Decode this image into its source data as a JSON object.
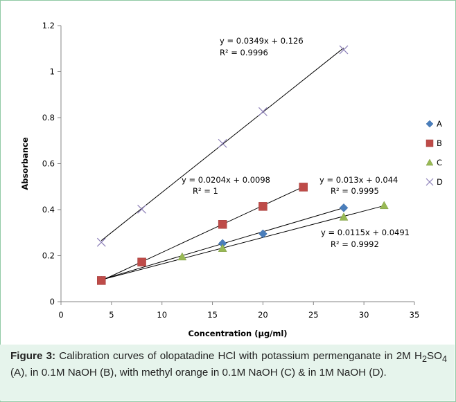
{
  "chart_data": {
    "type": "scatter",
    "xlabel": "Concentration (µg/ml)",
    "ylabel": "Absorbance",
    "xlim": [
      0,
      35
    ],
    "ylim": [
      0,
      1.2
    ],
    "x_ticks": [
      "0",
      "5",
      "10",
      "15",
      "20",
      "25",
      "30",
      "35"
    ],
    "y_ticks": [
      "0",
      "0.2",
      "0.4",
      "0.6",
      "0.8",
      "1",
      "1.2"
    ],
    "grid": false,
    "legend_position": "right",
    "series": [
      {
        "name": "A",
        "marker": "diamond",
        "color": "#4a7ebb",
        "x": [
          4,
          16,
          20,
          28
        ],
        "y": [
          0.093,
          0.253,
          0.295,
          0.408
        ],
        "trendline": {
          "slope": 0.013,
          "intercept": 0.044,
          "x_range": [
            4,
            28
          ]
        },
        "equation": "y = 0.013x + 0.044",
        "r2": "R² = 0.9995"
      },
      {
        "name": "B",
        "marker": "square",
        "color": "#be4b48",
        "x": [
          4,
          8,
          16,
          20,
          24
        ],
        "y": [
          0.092,
          0.172,
          0.336,
          0.414,
          0.498
        ],
        "trendline": {
          "slope": 0.0204,
          "intercept": 0.0098,
          "x_range": [
            4,
            24
          ]
        },
        "equation": "y = 0.0204x + 0.0098",
        "r2": "R² = 1"
      },
      {
        "name": "C",
        "marker": "triangle",
        "color": "#98b954",
        "x": [
          4,
          12,
          16,
          28,
          32
        ],
        "y": [
          0.09,
          0.195,
          0.232,
          0.368,
          0.418
        ],
        "trendline": {
          "slope": 0.0115,
          "intercept": 0.0491,
          "x_range": [
            4,
            32
          ]
        },
        "equation": "y = 0.0115x + 0.0491",
        "r2": "R² = 0.9992"
      },
      {
        "name": "D",
        "marker": "x",
        "color": "#8c7fb8",
        "x": [
          4,
          8,
          16,
          20,
          28
        ],
        "y": [
          0.258,
          0.402,
          0.688,
          0.826,
          1.095
        ],
        "trendline": {
          "slope": 0.0349,
          "intercept": 0.126,
          "x_range": [
            4,
            28
          ]
        },
        "equation": "y = 0.0349x + 0.126",
        "r2": "R² = 0.9996"
      }
    ]
  },
  "caption": {
    "label": "Figure 3:",
    "parts": [
      " Calibration curves of olopatadine HCl with potassium permenganate in 2M H",
      "2",
      "SO",
      "4",
      " (A), in 0.1M NaOH (B), with methyl orange in 0.1M NaOH (C) & in 1M NaOH (D)."
    ]
  }
}
